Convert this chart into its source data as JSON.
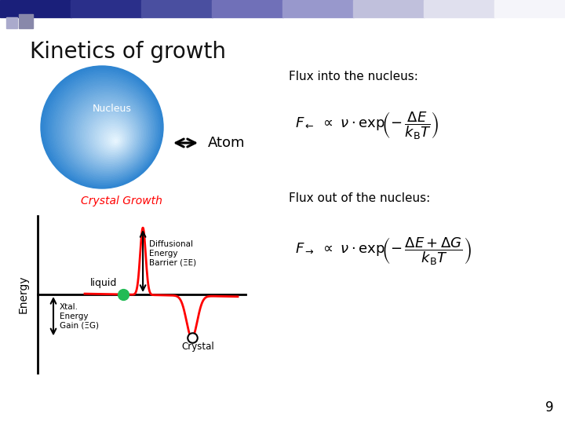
{
  "title": "Kinetics of growth",
  "title_fontsize": 20,
  "background_color": "#ffffff",
  "nucleus_label": "Nucleus",
  "atom_label": "Atom",
  "flux_in_label": "Flux into the nucleus:",
  "flux_out_label": "Flux out of the nucleus:",
  "crystal_growth_label": "Crystal Growth",
  "page_number": "9",
  "header_grad_colors": [
    "#1a1f7a",
    "#2a2f8a",
    "#4a4fa0",
    "#7070b8",
    "#9898cc",
    "#c0c0dc",
    "#e0e0ee",
    "#f5f5fa"
  ],
  "sq1_color": "#1a1f7a",
  "sq2_color": "#8888aa",
  "sq3_color": "#aaaacc"
}
